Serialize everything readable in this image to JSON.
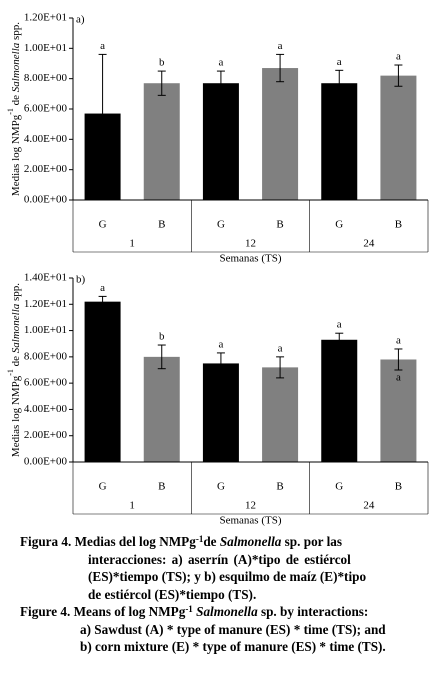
{
  "chart_data": [
    {
      "type": "bar",
      "panel": "a)",
      "y_label": [
        "Medias log NMPg",
        "-1",
        " de ",
        "Salmonella",
        " spp."
      ],
      "x_label": "Semanas (TS)",
      "categories": [
        "G",
        "B",
        "G",
        "B",
        "G",
        "B"
      ],
      "groups": [
        "1",
        "12",
        "24"
      ],
      "values": [
        5.7,
        7.7,
        7.7,
        8.7,
        7.7,
        8.2
      ],
      "errors": [
        3.9,
        0.8,
        0.8,
        0.9,
        0.85,
        0.7
      ],
      "letters": [
        "a",
        "b",
        "a",
        "a",
        "a",
        "a"
      ],
      "colors": [
        "#000000",
        "#808080",
        "#000000",
        "#808080",
        "#000000",
        "#808080"
      ],
      "ylim": [
        0,
        12
      ],
      "yticks": [
        {
          "value": 0,
          "label": "0.00E+00"
        },
        {
          "value": 2,
          "label": "2.00E+00"
        },
        {
          "value": 4,
          "label": "4.00E+00"
        },
        {
          "value": 6,
          "label": "6.00E+00"
        },
        {
          "value": 8,
          "label": "8.00E+00"
        },
        {
          "value": 10,
          "label": "1.00E+01"
        },
        {
          "value": 12,
          "label": "1.20E+01"
        }
      ]
    },
    {
      "type": "bar",
      "panel": "b)",
      "y_label": [
        "Medias log NMPg",
        "-1",
        " de ",
        "Salmonella",
        " spp."
      ],
      "x_label": "Semanas (TS)",
      "categories": [
        "G",
        "B",
        "G",
        "B",
        "G",
        "B"
      ],
      "groups": [
        "1",
        "12",
        "24"
      ],
      "values": [
        12.2,
        8.0,
        7.5,
        7.2,
        9.3,
        7.8
      ],
      "errors": [
        0.4,
        0.9,
        0.8,
        0.8,
        0.5,
        0.8
      ],
      "letters": [
        "a",
        "b",
        "a",
        "a",
        "a",
        "a"
      ],
      "extra_letter": "a",
      "colors": [
        "#000000",
        "#808080",
        "#000000",
        "#808080",
        "#000000",
        "#808080"
      ],
      "ylim": [
        0,
        14
      ],
      "yticks": [
        {
          "value": 0,
          "label": "0.00E+00"
        },
        {
          "value": 2,
          "label": "2.00E+00"
        },
        {
          "value": 4,
          "label": "4.00E+00"
        },
        {
          "value": 6,
          "label": "6.00E+00"
        },
        {
          "value": 8,
          "label": "8.00E+00"
        },
        {
          "value": 10,
          "label": "1.00E+01"
        },
        {
          "value": 12,
          "label": "1.20E+01"
        },
        {
          "value": 14,
          "label": "1.40E+01"
        }
      ]
    }
  ],
  "caption": {
    "es": [
      [
        "Figura 4. Medias del log NMPg",
        "-1",
        "de ",
        "Salmonella",
        " sp. por las"
      ],
      [
        "interacciones: a) aserrín (A)*tipo de estiércol"
      ],
      [
        "(ES)*tiempo (TS); y b) esquilmo de maíz (E)*tipo"
      ],
      [
        "de estiércol (ES)*tiempo (TS)."
      ]
    ],
    "en": [
      [
        "Figure 4. Means of log NMPg",
        "-1",
        " ",
        "Salmonella",
        " sp. by interactions:"
      ],
      [
        "a) Sawdust (A) * type of manure (ES) * time (TS); and"
      ],
      [
        "b) corn mixture (E) * type of manure (ES) * time (TS)."
      ]
    ]
  }
}
